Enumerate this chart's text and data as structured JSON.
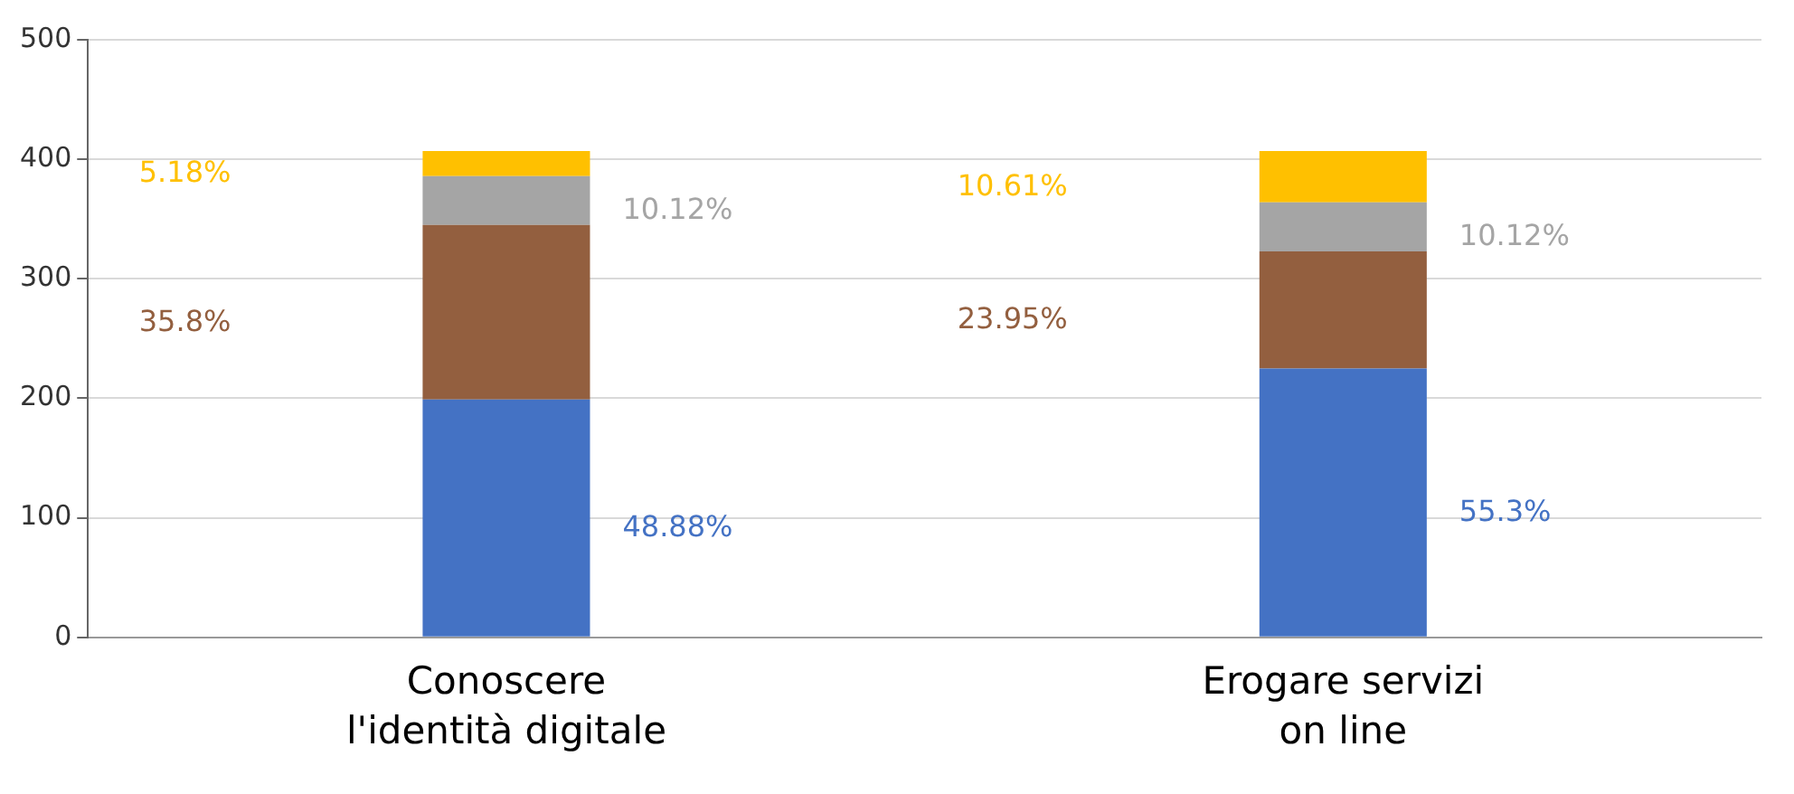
{
  "chart_data": {
    "type": "bar",
    "stacked": true,
    "categories": [
      "Conoscere l'identità digitale",
      "Erogare servizi on line"
    ],
    "series": [
      {
        "color": "#4472c4",
        "values": [
          199,
          225
        ]
      },
      {
        "color": "#935f3f",
        "values": [
          146,
          98
        ]
      },
      {
        "color": "#a5a5a5",
        "values": [
          41,
          41
        ]
      },
      {
        "color": "#ffc000",
        "values": [
          21,
          43
        ]
      }
    ],
    "annotations": [
      "48.88%",
      "55.3%",
      "35.8%",
      "23.95%",
      "10.12%",
      "10.12%",
      "5.18%",
      "10.61%"
    ],
    "ylim": [
      0,
      500
    ],
    "yticks": [
      0,
      100,
      200,
      300,
      400,
      500
    ],
    "grid": "y",
    "legend": false
  }
}
